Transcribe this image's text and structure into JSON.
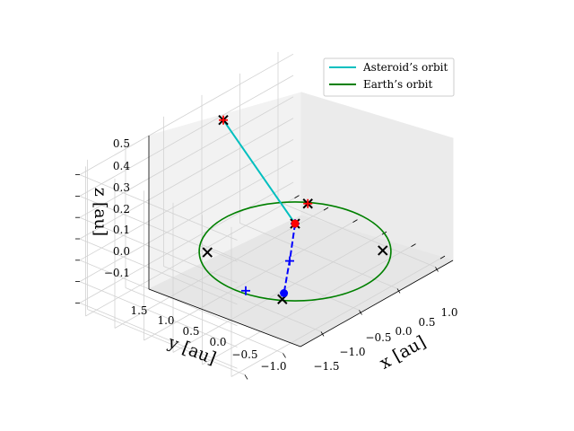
{
  "chart_data": {
    "type": "line3d",
    "xlabel": "x [au]",
    "ylabel": "y [au]",
    "zlabel": "z [au]",
    "x_ticks": [
      "−1.5",
      "−1.0",
      "−0.5",
      "0.0",
      "0.5",
      "1.0"
    ],
    "y_ticks": [
      "1.5",
      "1.0",
      "0.5",
      "0.0",
      "−0.5",
      "−1.0"
    ],
    "z_ticks": [
      "0.5",
      "0.4",
      "0.3",
      "0.2",
      "0.1",
      "0.0",
      "−0.1"
    ],
    "xlim": [
      -1.6,
      1.2
    ],
    "ylim": [
      -1.1,
      1.6
    ],
    "zlim": [
      -0.15,
      0.55
    ],
    "grid": true,
    "legend_position": "top-right",
    "series": [
      {
        "name": "Asteroid’s orbit",
        "color": "#00bfbf",
        "points": [
          [
            -0.1,
            1.1,
            0.51
          ],
          [
            0.0,
            0.0,
            0.13
          ]
        ]
      },
      {
        "name": "Earth’s orbit",
        "color": "#008000",
        "orbit": {
          "radius": 1.0,
          "z": 0.0
        }
      }
    ],
    "transfer_path": {
      "color": "#0000ff",
      "points": [
        [
          0.0,
          0.0,
          0.13
        ],
        [
          -0.26,
          -0.26,
          0.06
        ],
        [
          -0.62,
          -0.62,
          0.0
        ]
      ]
    },
    "markers": [
      {
        "shape": "cross",
        "color": "#000000",
        "point": [
          -0.1,
          1.1,
          0.51
        ]
      },
      {
        "shape": "cross",
        "color": "#000000",
        "point": [
          0.0,
          0.0,
          0.13
        ]
      },
      {
        "shape": "cross",
        "color": "#000000",
        "point": [
          -0.5,
          0.85,
          0.0
        ]
      },
      {
        "shape": "cross",
        "color": "#000000",
        "point": [
          0.5,
          -0.85,
          0.0
        ]
      },
      {
        "shape": "cross",
        "color": "#000000",
        "point": [
          -0.71,
          -0.71,
          0.0
        ]
      },
      {
        "shape": "cross",
        "color": "#000000",
        "point": [
          0.71,
          0.71,
          0.0
        ]
      },
      {
        "shape": "plus",
        "color": "#ff0000",
        "point": [
          -0.1,
          1.1,
          0.51
        ]
      },
      {
        "shape": "plus",
        "color": "#ff0000",
        "point": [
          0.71,
          0.71,
          0.0
        ]
      },
      {
        "shape": "plus",
        "color": "#0000ff",
        "point": [
          0.0,
          0.0,
          0.13
        ]
      },
      {
        "shape": "plus",
        "color": "#0000ff",
        "point": [
          -0.3,
          -0.3,
          0.05
        ]
      },
      {
        "shape": "plus",
        "color": "#0000ff",
        "point": [
          -0.8,
          -0.2,
          0.0
        ]
      },
      {
        "shape": "dot",
        "color": "#ff0000",
        "point": [
          0.0,
          0.0,
          0.13
        ]
      },
      {
        "shape": "dot",
        "color": "#0000ff",
        "point": [
          -0.62,
          -0.62,
          0.0
        ]
      }
    ]
  }
}
